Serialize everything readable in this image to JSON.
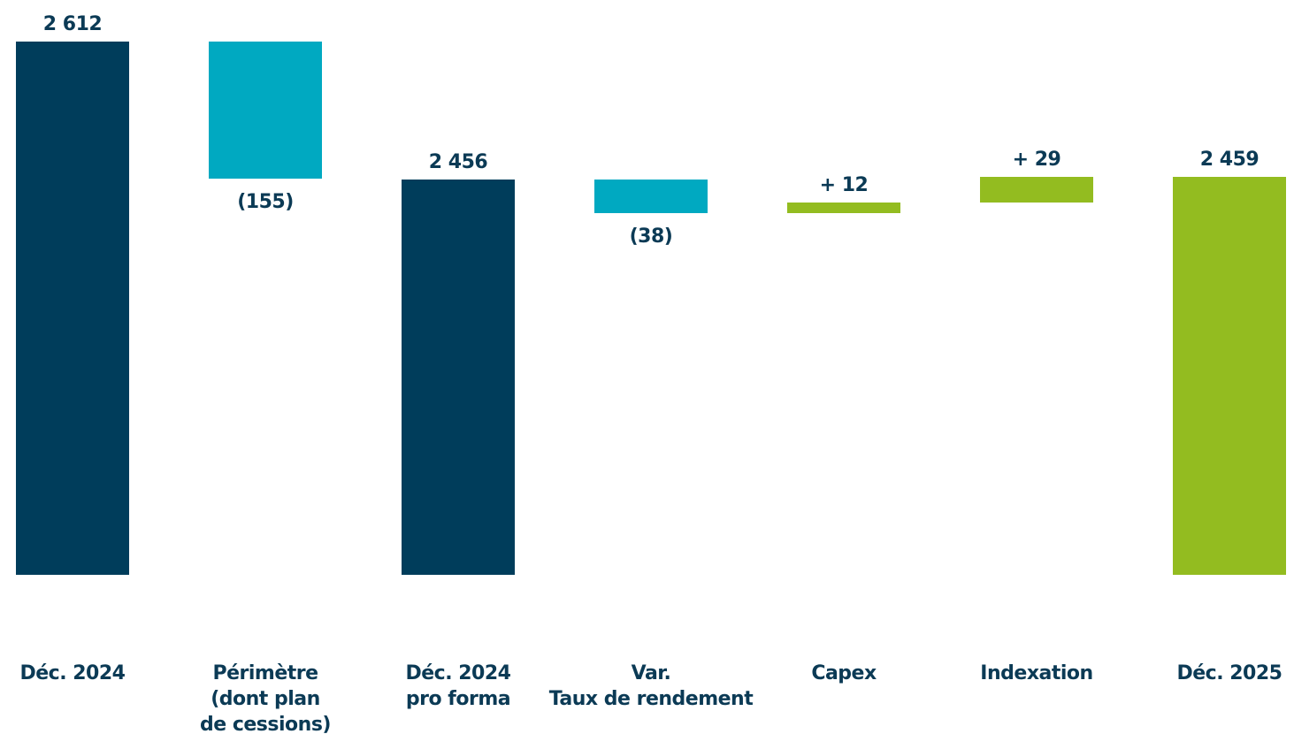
{
  "chart_data": {
    "type": "waterfall",
    "categories": [
      "Déc. 2024",
      "Périmètre\n(dont plan\nde cessions)",
      "Déc. 2024\npro forma",
      "Var.\nTaux de rendement",
      "Capex",
      "Indexation",
      "Déc. 2025"
    ],
    "values": [
      2612,
      -155,
      2456,
      -38,
      12,
      29,
      2459
    ],
    "value_labels": [
      "2 612",
      "(155)",
      "2 456",
      "(38)",
      "+ 12",
      "+ 29",
      "2 459"
    ],
    "is_total": [
      true,
      false,
      true,
      false,
      false,
      false,
      true
    ],
    "colors": [
      "#003d5b",
      "#00a9c1",
      "#003d5b",
      "#00a9c1",
      "#93bc20",
      "#93bc20",
      "#93bc20"
    ],
    "ylim": [
      2009,
      2650
    ]
  }
}
